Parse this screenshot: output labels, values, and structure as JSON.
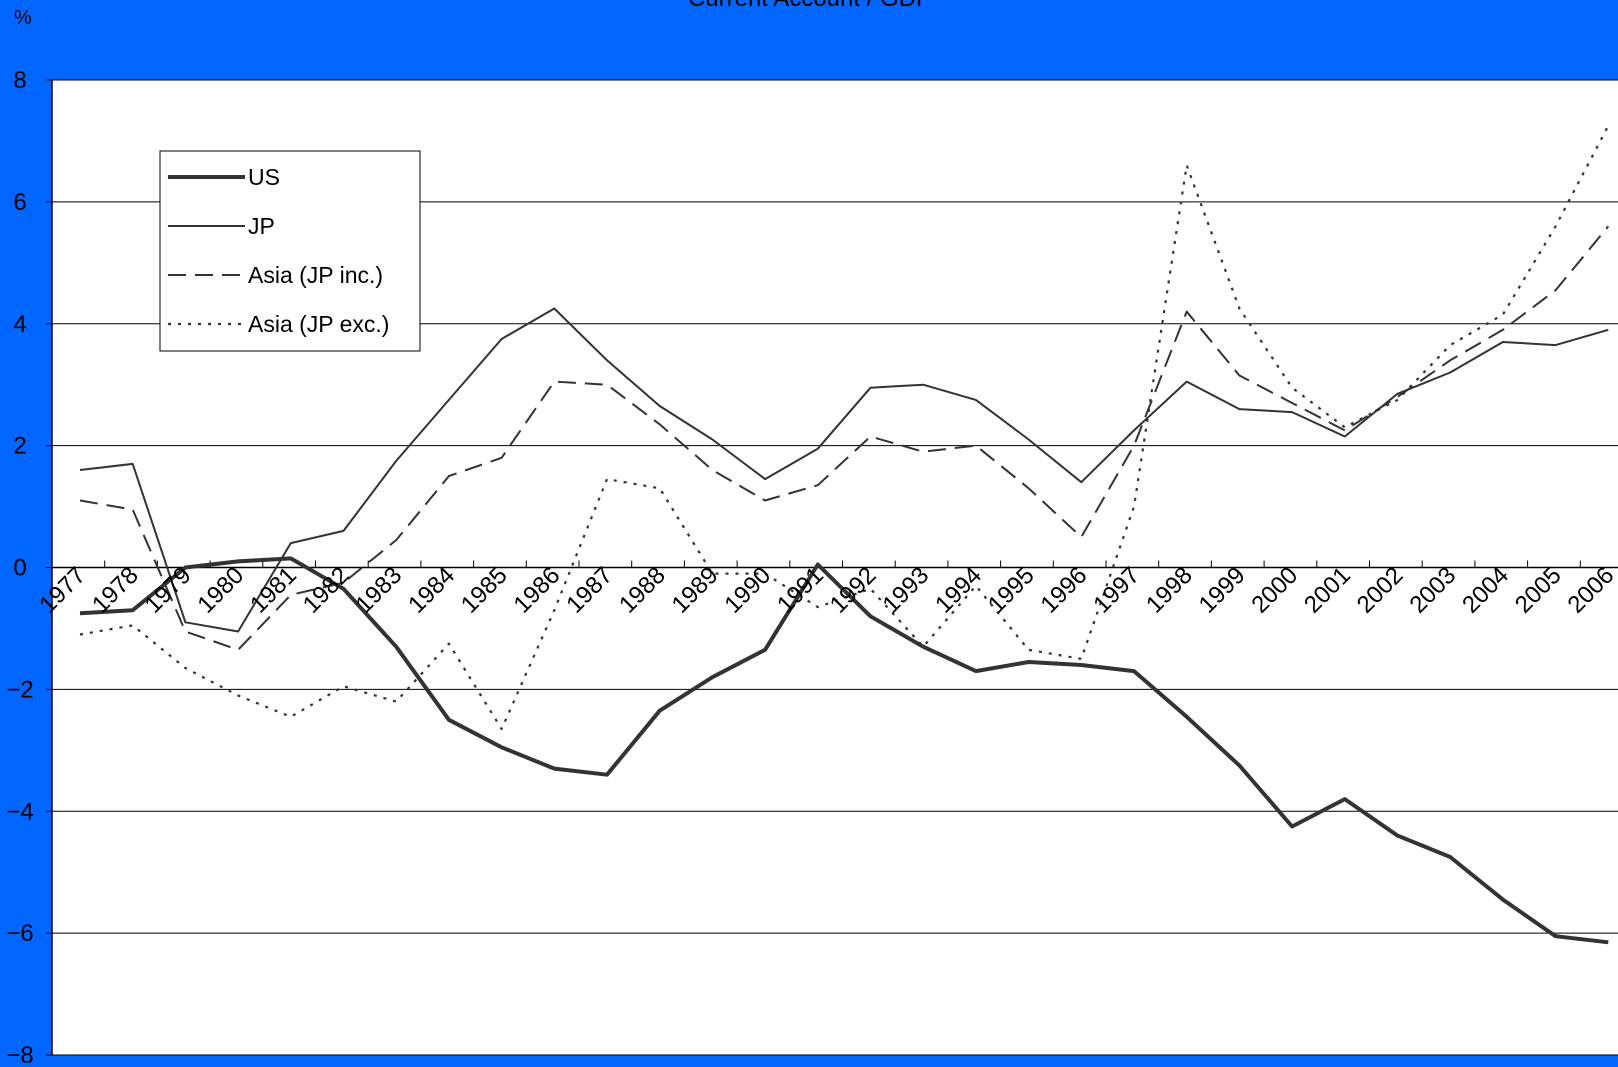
{
  "chart_data": {
    "type": "line",
    "title": "Current Account / GDP",
    "ylabel": "%",
    "ylim": [
      -8,
      8
    ],
    "yticks": [
      -8,
      -6,
      -4,
      -2,
      0,
      2,
      4,
      6,
      8
    ],
    "ytick_labels": [
      "−8",
      "−6",
      "−4",
      "−2",
      "0",
      "2",
      "4",
      "6",
      "8"
    ],
    "grid": true,
    "legend_position": "top-left",
    "categories": [
      "1977",
      "1978",
      "1979",
      "1980",
      "1981",
      "1982",
      "1983",
      "1984",
      "1985",
      "1986",
      "1987",
      "1988",
      "1989",
      "1990",
      "1991",
      "1992",
      "1993",
      "1994",
      "1995",
      "1996",
      "1997",
      "1998",
      "1999",
      "2000",
      "2001",
      "2002",
      "2003",
      "2004",
      "2005",
      "2006"
    ],
    "series": [
      {
        "name": "US",
        "style": "thick-solid",
        "color": "#333333",
        "values": [
          -0.75,
          -0.7,
          0.0,
          0.1,
          0.15,
          -0.35,
          -1.3,
          -2.5,
          -2.95,
          -3.3,
          -3.4,
          -2.35,
          -1.8,
          -1.35,
          0.05,
          -0.8,
          -1.3,
          -1.7,
          -1.55,
          -1.6,
          -1.7,
          -2.45,
          -3.25,
          -4.25,
          -3.8,
          -4.4,
          -4.75,
          -5.45,
          -6.05,
          -6.15
        ]
      },
      {
        "name": "JP",
        "style": "thin-solid",
        "color": "#333333",
        "values": [
          1.6,
          1.7,
          -0.9,
          -1.05,
          0.4,
          0.6,
          1.75,
          2.75,
          3.75,
          4.25,
          3.4,
          2.65,
          2.1,
          1.45,
          1.95,
          2.95,
          3.0,
          2.75,
          2.1,
          1.4,
          2.25,
          3.05,
          2.6,
          2.55,
          2.15,
          2.85,
          3.2,
          3.7,
          3.65,
          3.9
        ]
      },
      {
        "name": "Asia (JP inc.)",
        "style": "dashed",
        "color": "#333333",
        "values": [
          1.1,
          0.95,
          -1.05,
          -1.35,
          -0.45,
          -0.25,
          0.45,
          1.5,
          1.8,
          3.05,
          3.0,
          2.35,
          1.6,
          1.1,
          1.35,
          2.15,
          1.9,
          2.0,
          1.3,
          0.5,
          2.0,
          4.2,
          3.15,
          2.7,
          2.25,
          2.8,
          3.4,
          3.9,
          4.55,
          5.6
        ]
      },
      {
        "name": "Asia (JP exc.)",
        "style": "dotted",
        "color": "#333333",
        "values": [
          -1.1,
          -0.95,
          -1.65,
          -2.1,
          -2.45,
          -1.95,
          -2.2,
          -1.25,
          -2.65,
          -0.7,
          1.45,
          1.3,
          -0.1,
          -0.1,
          -0.65,
          -0.35,
          -1.3,
          -0.3,
          -1.35,
          -1.5,
          1.0,
          6.6,
          4.25,
          2.95,
          2.3,
          2.75,
          3.65,
          4.15,
          5.6,
          7.25
        ]
      }
    ]
  }
}
